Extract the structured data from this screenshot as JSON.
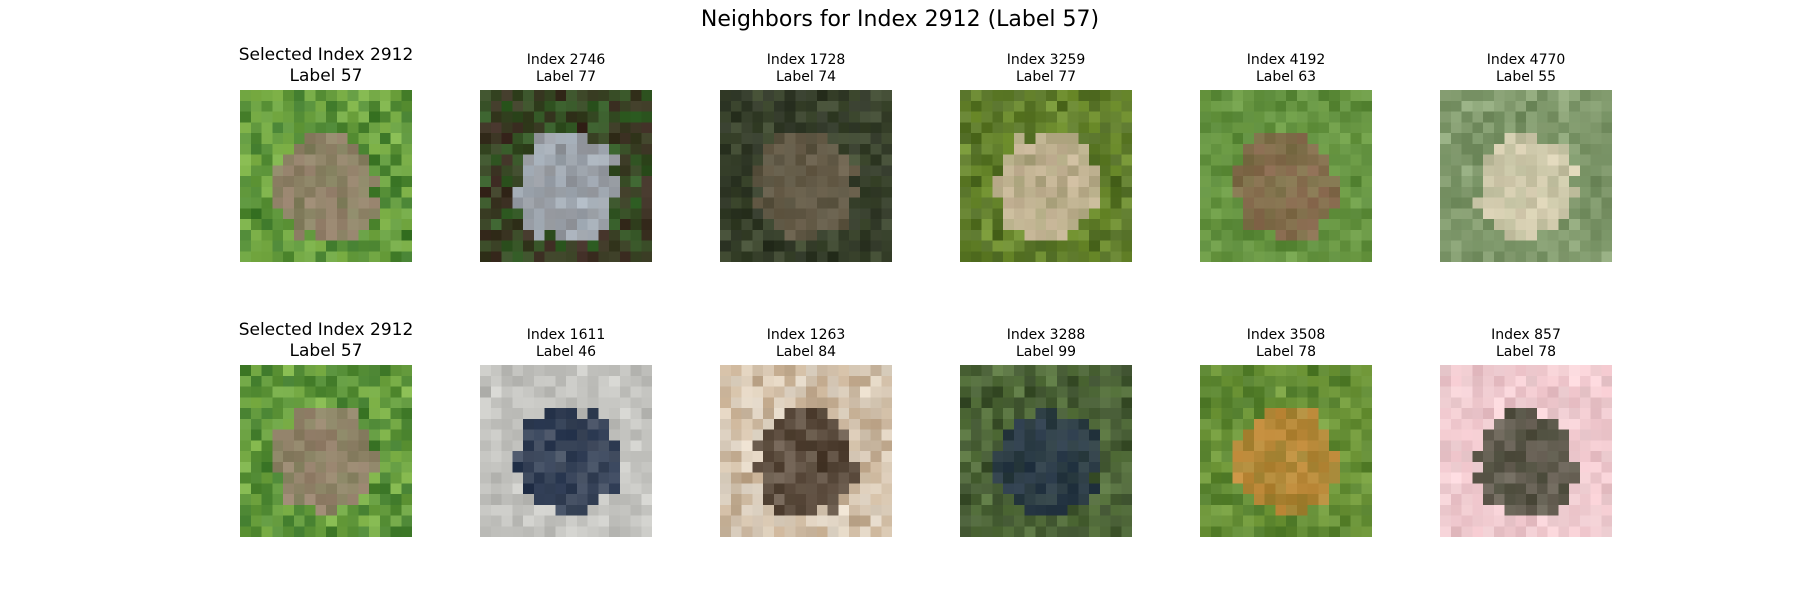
{
  "figure": {
    "title": "Neighbors for Index 2912 (Label 57)"
  },
  "rows": [
    {
      "cells": [
        {
          "line1": "Selected Index 2912",
          "line2": "Label 57",
          "selected": true,
          "colors": {
            "bg": "#3f7a2c",
            "accent": "#a1d15a",
            "object": "#9a8470"
          }
        },
        {
          "line1": "Index 2746",
          "line2": "Label 77",
          "selected": false,
          "colors": {
            "bg": "#3d2a22",
            "accent": "#2f7a2a",
            "object": "#a9b3bd"
          }
        },
        {
          "line1": "Index 1728",
          "line2": "Label 74",
          "selected": false,
          "colors": {
            "bg": "#2c3324",
            "accent": "#4d5a3a",
            "object": "#6b604c"
          }
        },
        {
          "line1": "Index 3259",
          "line2": "Label 77",
          "selected": false,
          "colors": {
            "bg": "#4f6a24",
            "accent": "#86a83a",
            "object": "#c9b79a"
          }
        },
        {
          "line1": "Index 4192",
          "line2": "Label 63",
          "selected": false,
          "colors": {
            "bg": "#5b8a3a",
            "accent": "#7aa84f",
            "object": "#8a6a50"
          }
        },
        {
          "line1": "Index 4770",
          "line2": "Label 55",
          "selected": false,
          "colors": {
            "bg": "#6f8a5c",
            "accent": "#9fb58a",
            "object": "#d9cfb3"
          }
        }
      ]
    },
    {
      "cells": [
        {
          "line1": "Selected Index 2912",
          "line2": "Label 57",
          "selected": true,
          "colors": {
            "bg": "#3f7a2c",
            "accent": "#a1d15a",
            "object": "#9a8470"
          }
        },
        {
          "line1": "Index 1611",
          "line2": "Label 46",
          "selected": false,
          "colors": {
            "bg": "#b9b9b5",
            "accent": "#d8d8d4",
            "object": "#23314a"
          }
        },
        {
          "line1": "Index 1263",
          "line2": "Label 84",
          "selected": false,
          "colors": {
            "bg": "#e6dccd",
            "accent": "#b0916e",
            "object": "#4a3a2c"
          }
        },
        {
          "line1": "Index 3288",
          "line2": "Label 99",
          "selected": false,
          "colors": {
            "bg": "#3a4d2c",
            "accent": "#6a8a4a",
            "object": "#2a3a4a"
          }
        },
        {
          "line1": "Index 3508",
          "line2": "Label 78",
          "selected": false,
          "colors": {
            "bg": "#4f7a2a",
            "accent": "#8ab04a",
            "object": "#c08a3a"
          }
        },
        {
          "line1": "Index 857",
          "line2": "Label 78",
          "selected": false,
          "colors": {
            "bg": "#f2d2d6",
            "accent": "#e8b9c0",
            "object": "#4a4a3a"
          }
        }
      ]
    }
  ]
}
